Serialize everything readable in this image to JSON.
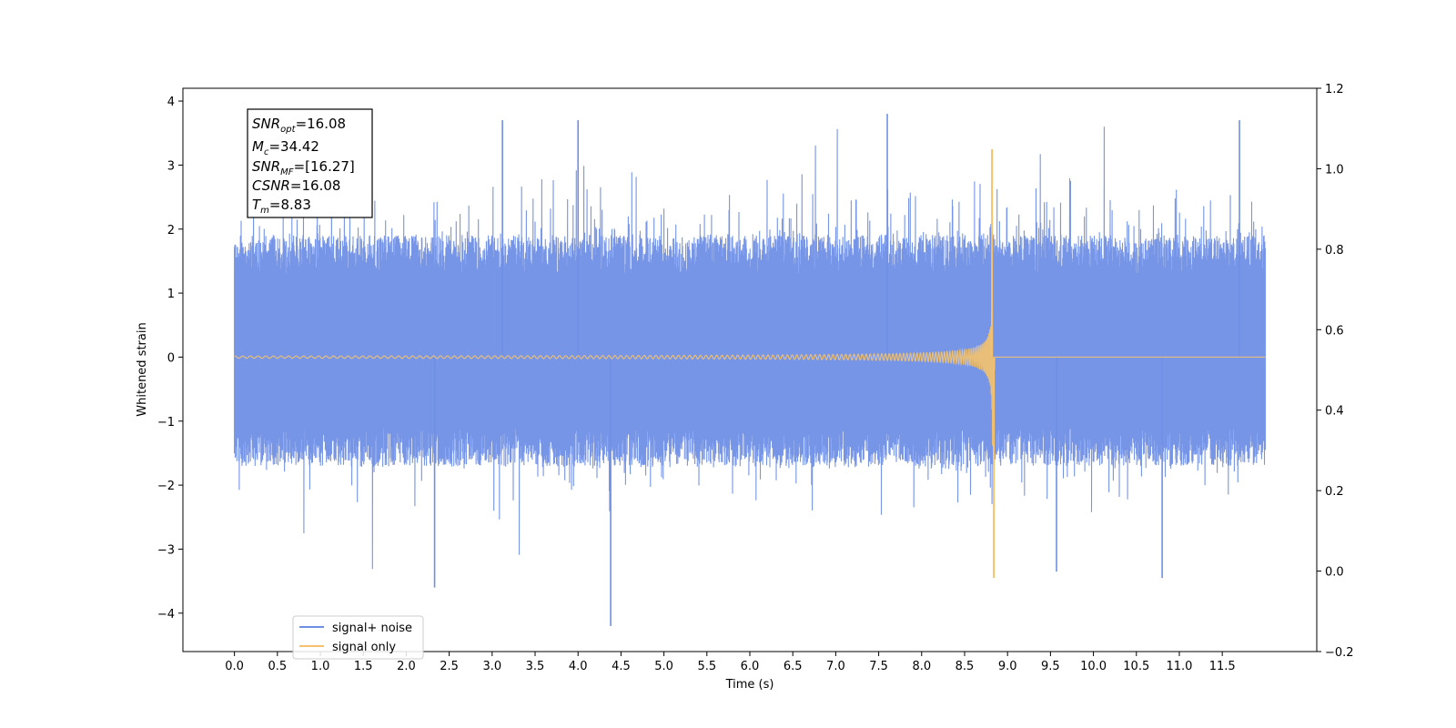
{
  "chart_data": {
    "type": "line",
    "title": "",
    "xlabel": "Time (s)",
    "ylabel": "Whitened strain",
    "xlim": [
      -0.6,
      12.6
    ],
    "ylim": [
      -4.6,
      4.2
    ],
    "y2lim": [
      -0.2,
      1.2
    ],
    "xticks": [
      "0.0",
      "0.5",
      "1.0",
      "1.5",
      "2.0",
      "2.5",
      "3.0",
      "3.5",
      "4.0",
      "4.5",
      "5.0",
      "5.5",
      "6.0",
      "6.5",
      "7.0",
      "7.5",
      "8.0",
      "8.5",
      "9.0",
      "9.5",
      "10.0",
      "10.5",
      "11.0",
      "11.5"
    ],
    "yticks": [
      "4",
      "3",
      "2",
      "1",
      "0",
      "−1",
      "−2",
      "−3",
      "−4"
    ],
    "y2ticks": [
      "1.2",
      "1.0",
      "0.8",
      "0.6",
      "0.4",
      "0.2",
      "0.0",
      "−0.2"
    ],
    "grid": false,
    "legend_position": "lower-left",
    "series": [
      {
        "name": "signal+ noise",
        "color": "#6f8fe6",
        "t_range": [
          0,
          12
        ],
        "noise_std": 1.0,
        "offset": 0.3,
        "notable_peaks": [
          {
            "t": 3.12,
            "y": 3.7
          },
          {
            "t": 4.0,
            "y": 3.7
          },
          {
            "t": 7.6,
            "y": 3.8
          },
          {
            "t": 11.7,
            "y": 3.7
          },
          {
            "t": 2.33,
            "y": -3.6
          },
          {
            "t": 4.38,
            "y": -4.2
          },
          {
            "t": 9.57,
            "y": -3.35
          },
          {
            "t": 10.8,
            "y": -3.45
          }
        ]
      },
      {
        "name": "signal only",
        "color": "#f5c26b",
        "t_range": [
          0,
          12
        ],
        "merger_time": 8.83,
        "base_value": 0.0,
        "peak_max": 3.25,
        "peak_min": -3.45
      }
    ]
  },
  "infobox": {
    "snr_opt": {
      "sym": "SNR",
      "sub": "opt",
      "value": "=16.08"
    },
    "mc": {
      "sym": "M",
      "sub": "c",
      "value": "=34.42"
    },
    "snr_mf": {
      "sym": "SNR",
      "sub": "MF",
      "value": "=[16.27]"
    },
    "csnr": {
      "sym": "CSNR",
      "value": "=16.08"
    },
    "tm": {
      "sym": "T",
      "sub": "m",
      "value": "=8.83"
    }
  }
}
